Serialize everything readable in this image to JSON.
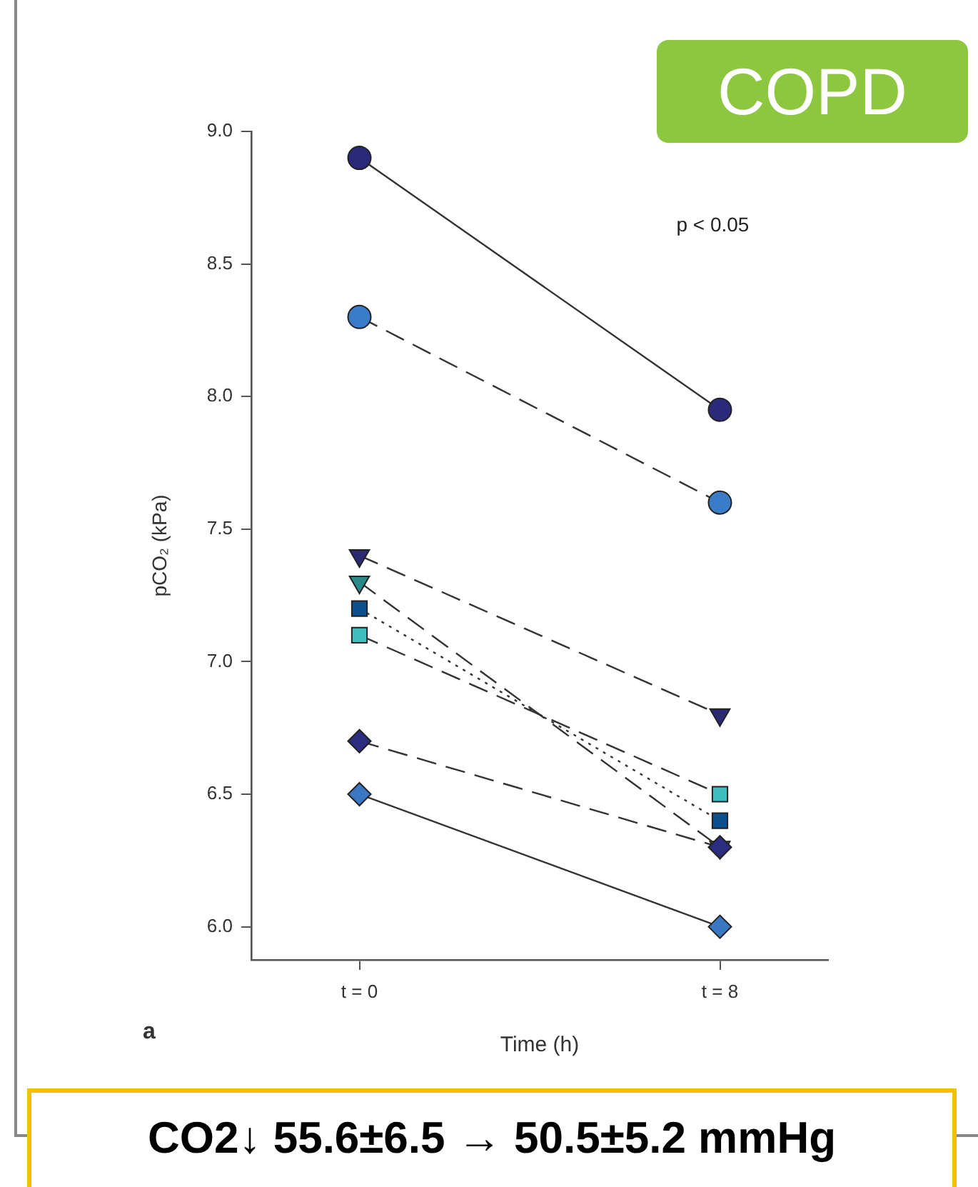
{
  "chart_data": {
    "type": "line",
    "title": "COPD",
    "xlabel": "Time (h)",
    "ylabel": "pCO₂ (kPa)",
    "categories": [
      "t = 0",
      "t = 8"
    ],
    "ylim": [
      5.875,
      9
    ],
    "yticks": [
      {
        "value": 6,
        "label": "6.0"
      },
      {
        "value": 6.5,
        "label": "6.5"
      },
      {
        "value": 7,
        "label": "7.0"
      },
      {
        "value": 7.5,
        "label": "7.5"
      },
      {
        "value": 8,
        "label": "8.0"
      },
      {
        "value": 8.5,
        "label": "8.5"
      },
      {
        "value": 9,
        "label": "9.0"
      }
    ],
    "grid": false,
    "legend": false,
    "annotations": [
      "p < 0.05",
      "a",
      "CO2↓ 55.6±6.5 → 50.5±5.2 mmHg"
    ],
    "series": [
      {
        "color": "#2b2a7a",
        "marker": "circle",
        "line_style": "solid",
        "values": [
          8.9,
          7.95
        ]
      },
      {
        "color": "#3a7cc7",
        "marker": "circle",
        "line_style": "dashed",
        "values": [
          8.3,
          7.6
        ]
      },
      {
        "color": "#2a2a72",
        "marker": "triangle",
        "line_style": "dashed",
        "values": [
          7.4,
          6.8
        ]
      },
      {
        "color": "#2a8a8a",
        "marker": "triangle",
        "line_style": "dashed",
        "values": [
          7.3,
          6.3
        ]
      },
      {
        "color": "#0d4e8c",
        "marker": "square",
        "line_style": "dotted",
        "values": [
          7.2,
          6.4
        ]
      },
      {
        "color": "#40bfc0",
        "marker": "square",
        "line_style": "dashed",
        "values": [
          7.1,
          6.5
        ]
      },
      {
        "color": "#2d2d80",
        "marker": "diamond",
        "line_style": "dashed",
        "values": [
          6.7,
          6.3
        ]
      },
      {
        "color": "#3b78c4",
        "marker": "diamond",
        "line_style": "solid",
        "values": [
          6.5,
          6.0
        ]
      }
    ]
  }
}
